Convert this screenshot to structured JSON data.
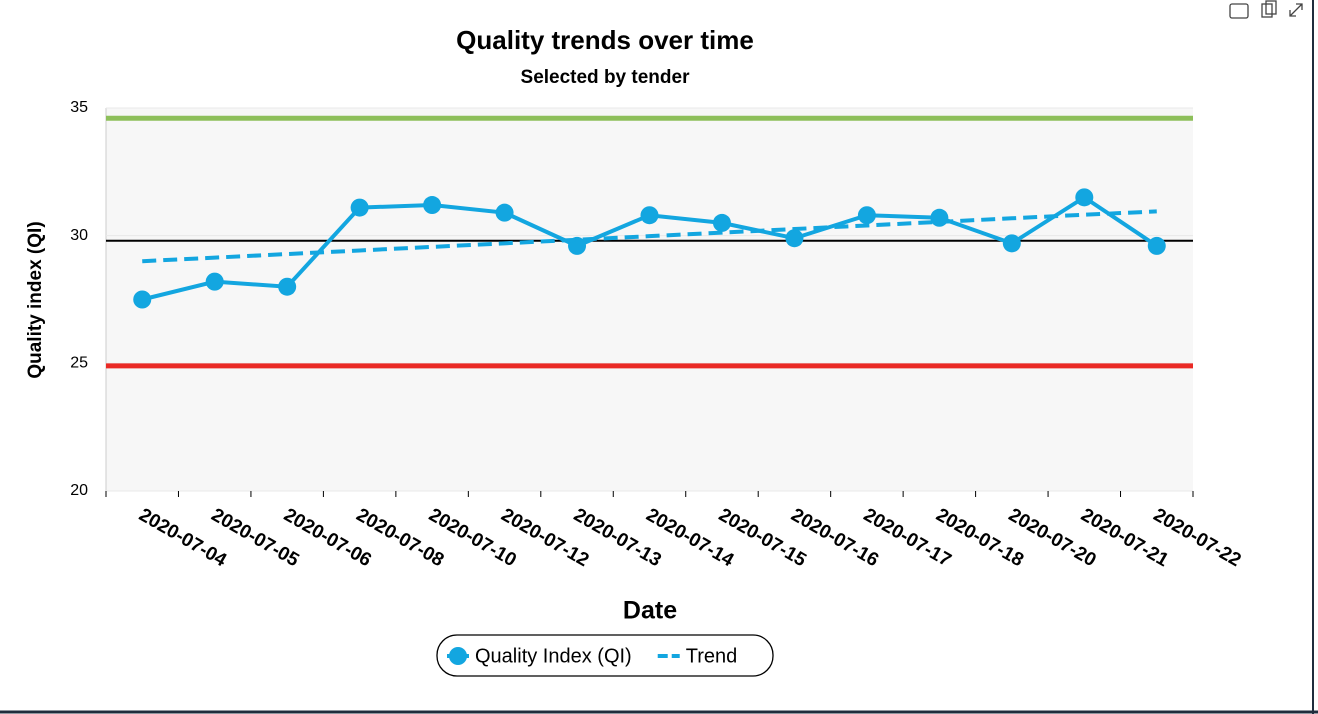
{
  "chart_data": {
    "type": "line",
    "title": "Quality trends over time",
    "subtitle": "Selected by tender",
    "x_label": "Date",
    "y_label": "Quality index (QI)",
    "categories": [
      "2020-07-04",
      "2020-07-05",
      "2020-07-06",
      "2020-07-08",
      "2020-07-10",
      "2020-07-12",
      "2020-07-13",
      "2020-07-14",
      "2020-07-15",
      "2020-07-16",
      "2020-07-17",
      "2020-07-18",
      "2020-07-20",
      "2020-07-21",
      "2020-07-22"
    ],
    "series": [
      {
        "name": "Quality Index (QI)",
        "color": "#13a6e0",
        "style": "solid",
        "markers": true,
        "values": [
          27.5,
          28.2,
          28.0,
          31.1,
          31.2,
          30.9,
          29.6,
          30.8,
          30.5,
          29.9,
          30.8,
          30.7,
          29.7,
          31.5,
          29.6
        ]
      },
      {
        "name": "Trend",
        "color": "#13a6e0",
        "style": "dashed",
        "markers": false,
        "values": [
          29.0,
          29.14,
          29.28,
          29.42,
          29.56,
          29.7,
          29.84,
          29.98,
          30.12,
          30.26,
          30.4,
          30.54,
          30.68,
          30.82,
          30.95
        ]
      }
    ],
    "reference_lines": [
      {
        "value": 34.6,
        "color": "#8dbf5a"
      },
      {
        "value": 29.8,
        "color": "#000000"
      },
      {
        "value": 24.9,
        "color": "#ea2a25"
      }
    ],
    "ylim": [
      20,
      35
    ],
    "yticks": [
      20,
      25,
      30,
      35
    ],
    "grid": true,
    "legend": "bottom"
  }
}
